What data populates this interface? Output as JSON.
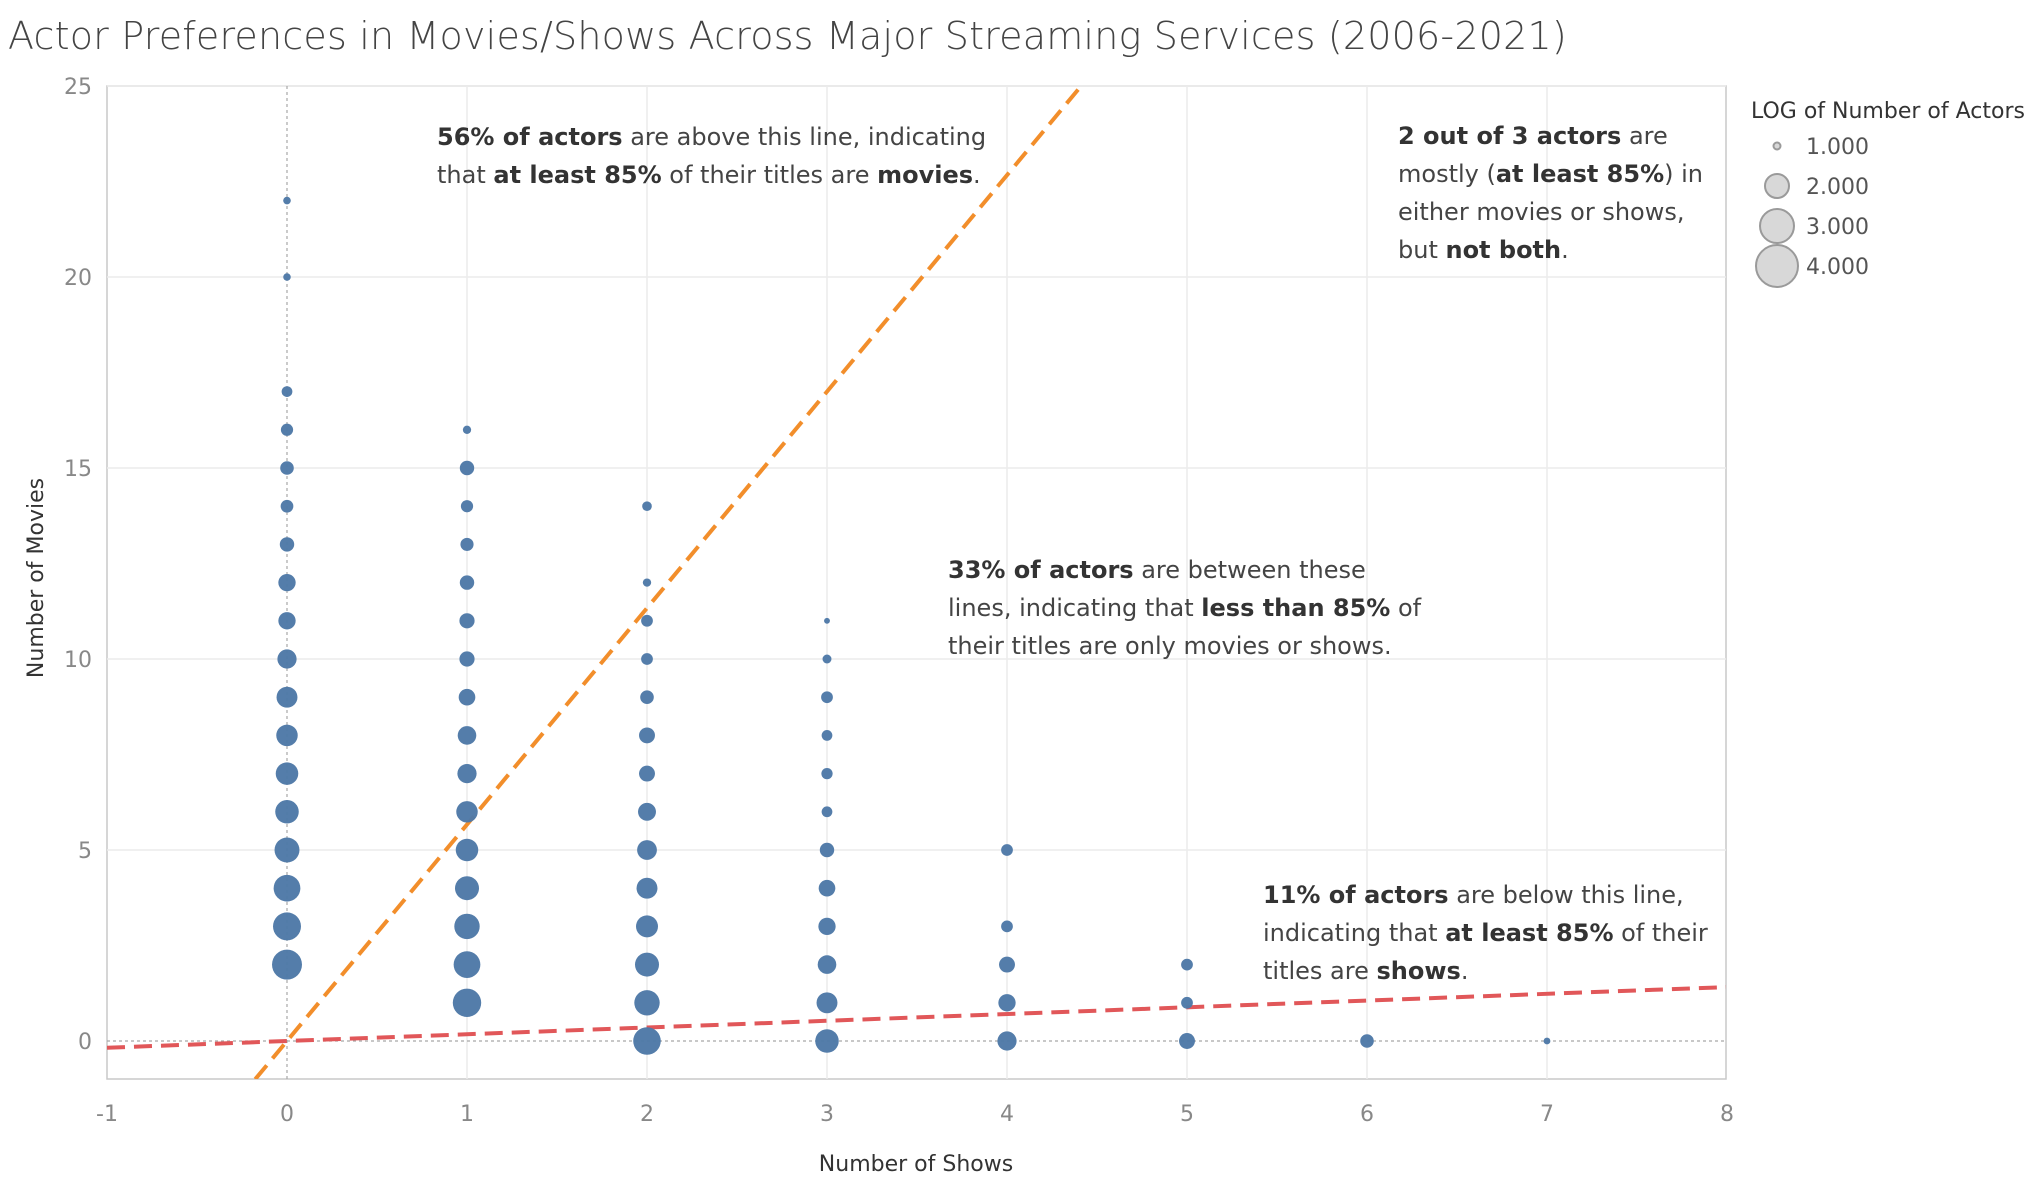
{
  "title": "Actor Preferences in Movies/Shows Across Major Streaming Services (2006-2021)",
  "colors": {
    "points": "#4e79a7",
    "movie_line": "#f28e2b",
    "show_line": "#e15759",
    "grid": "#ececec",
    "legend_circle": "#d8d8d8"
  },
  "chart_data": {
    "type": "scatter",
    "xlabel": "Number of Shows",
    "ylabel": "Number of Movies",
    "xlim": [
      -1,
      8
    ],
    "ylim": [
      -1,
      25
    ],
    "x_ticks": [
      -1,
      0,
      1,
      2,
      3,
      4,
      5,
      6,
      7,
      8
    ],
    "y_ticks": [
      0,
      5,
      10,
      15,
      20,
      25
    ],
    "grid": true,
    "size_encoding": "LOG of Number of Actors",
    "points": [
      {
        "x": 0,
        "y": 22,
        "log_actors": 0.25
      },
      {
        "x": 0,
        "y": 20,
        "log_actors": 0.25
      },
      {
        "x": 0,
        "y": 17,
        "log_actors": 0.5
      },
      {
        "x": 0,
        "y": 16,
        "log_actors": 0.65
      },
      {
        "x": 0,
        "y": 15,
        "log_actors": 0.8
      },
      {
        "x": 0,
        "y": 14,
        "log_actors": 0.7
      },
      {
        "x": 0,
        "y": 13,
        "log_actors": 0.9
      },
      {
        "x": 0,
        "y": 12,
        "log_actors": 1.3
      },
      {
        "x": 0,
        "y": 11,
        "log_actors": 1.3
      },
      {
        "x": 0,
        "y": 10,
        "log_actors": 1.6
      },
      {
        "x": 0,
        "y": 9,
        "log_actors": 1.9
      },
      {
        "x": 0,
        "y": 8,
        "log_actors": 2.0
      },
      {
        "x": 0,
        "y": 7,
        "log_actors": 2.2
      },
      {
        "x": 0,
        "y": 6,
        "log_actors": 2.4
      },
      {
        "x": 0,
        "y": 5,
        "log_actors": 2.7
      },
      {
        "x": 0,
        "y": 4,
        "log_actors": 3.1
      },
      {
        "x": 0,
        "y": 3,
        "log_actors": 3.4
      },
      {
        "x": 0,
        "y": 2,
        "log_actors": 3.9
      },
      {
        "x": 1,
        "y": 16,
        "log_actors": 0.3
      },
      {
        "x": 1,
        "y": 15,
        "log_actors": 0.9
      },
      {
        "x": 1,
        "y": 14,
        "log_actors": 0.65
      },
      {
        "x": 1,
        "y": 13,
        "log_actors": 0.75
      },
      {
        "x": 1,
        "y": 12,
        "log_actors": 0.9
      },
      {
        "x": 1,
        "y": 11,
        "log_actors": 1.0
      },
      {
        "x": 1,
        "y": 10,
        "log_actors": 1.0
      },
      {
        "x": 1,
        "y": 9,
        "log_actors": 1.2
      },
      {
        "x": 1,
        "y": 8,
        "log_actors": 1.5
      },
      {
        "x": 1,
        "y": 7,
        "log_actors": 1.6
      },
      {
        "x": 1,
        "y": 6,
        "log_actors": 2.0
      },
      {
        "x": 1,
        "y": 5,
        "log_actors": 2.2
      },
      {
        "x": 1,
        "y": 4,
        "log_actors": 2.5
      },
      {
        "x": 1,
        "y": 3,
        "log_actors": 2.8
      },
      {
        "x": 1,
        "y": 2,
        "log_actors": 3.1
      },
      {
        "x": 1,
        "y": 1,
        "log_actors": 3.5
      },
      {
        "x": 2,
        "y": 14,
        "log_actors": 0.4
      },
      {
        "x": 2,
        "y": 12,
        "log_actors": 0.3
      },
      {
        "x": 2,
        "y": 11,
        "log_actors": 0.6
      },
      {
        "x": 2,
        "y": 10,
        "log_actors": 0.6
      },
      {
        "x": 2,
        "y": 9,
        "log_actors": 0.8
      },
      {
        "x": 2,
        "y": 8,
        "log_actors": 1.1
      },
      {
        "x": 2,
        "y": 7,
        "log_actors": 1.1
      },
      {
        "x": 2,
        "y": 6,
        "log_actors": 1.4
      },
      {
        "x": 2,
        "y": 5,
        "log_actors": 1.7
      },
      {
        "x": 2,
        "y": 4,
        "log_actors": 1.9
      },
      {
        "x": 2,
        "y": 3,
        "log_actors": 2.1
      },
      {
        "x": 2,
        "y": 2,
        "log_actors": 2.5
      },
      {
        "x": 2,
        "y": 1,
        "log_actors": 2.8
      },
      {
        "x": 2,
        "y": 0,
        "log_actors": 3.3
      },
      {
        "x": 3,
        "y": 11,
        "log_actors": 0.15
      },
      {
        "x": 3,
        "y": 10,
        "log_actors": 0.35
      },
      {
        "x": 3,
        "y": 9,
        "log_actors": 0.6
      },
      {
        "x": 3,
        "y": 8,
        "log_actors": 0.5
      },
      {
        "x": 3,
        "y": 7,
        "log_actors": 0.55
      },
      {
        "x": 3,
        "y": 6,
        "log_actors": 0.5
      },
      {
        "x": 3,
        "y": 5,
        "log_actors": 0.9
      },
      {
        "x": 3,
        "y": 4,
        "log_actors": 1.2
      },
      {
        "x": 3,
        "y": 3,
        "log_actors": 1.3
      },
      {
        "x": 3,
        "y": 2,
        "log_actors": 1.5
      },
      {
        "x": 3,
        "y": 1,
        "log_actors": 1.9
      },
      {
        "x": 3,
        "y": 0,
        "log_actors": 2.4
      },
      {
        "x": 4,
        "y": 5,
        "log_actors": 0.6
      },
      {
        "x": 4,
        "y": 3,
        "log_actors": 0.6
      },
      {
        "x": 4,
        "y": 2,
        "log_actors": 1.1
      },
      {
        "x": 4,
        "y": 1,
        "log_actors": 1.3
      },
      {
        "x": 4,
        "y": 0,
        "log_actors": 1.6
      },
      {
        "x": 5,
        "y": 2,
        "log_actors": 0.6
      },
      {
        "x": 5,
        "y": 1,
        "log_actors": 0.6
      },
      {
        "x": 5,
        "y": 0,
        "log_actors": 1.1
      },
      {
        "x": 6,
        "y": 0,
        "log_actors": 0.8
      },
      {
        "x": 7,
        "y": 0,
        "log_actors": 0.2
      }
    ],
    "reference_lines": [
      {
        "slope": 5.6667
      },
      {
        "slope": 0.17647
      }
    ]
  },
  "annotations": [
    {
      "lines": [
        [
          {
            "t": "56% of actors",
            "b": true
          },
          {
            "t": " are above this line, indicating",
            "b": false
          }
        ],
        [
          {
            "t": "that ",
            "b": false
          },
          {
            "t": "at least 85%",
            "b": true
          },
          {
            "t": " of their titles are ",
            "b": false
          },
          {
            "t": "movies",
            "b": true
          },
          {
            "t": ".",
            "b": false
          }
        ]
      ]
    },
    {
      "lines": [
        [
          {
            "t": "2 out of 3 actors",
            "b": true
          },
          {
            "t": " are",
            "b": false
          }
        ],
        [
          {
            "t": "mostly (",
            "b": false
          },
          {
            "t": "at least 85%",
            "b": true
          },
          {
            "t": ") in",
            "b": false
          }
        ],
        [
          {
            "t": "either movies or shows,",
            "b": false
          }
        ],
        [
          {
            "t": "but ",
            "b": false
          },
          {
            "t": "not both",
            "b": true
          },
          {
            "t": ".",
            "b": false
          }
        ]
      ]
    },
    {
      "lines": [
        [
          {
            "t": "33% of actors",
            "b": true
          },
          {
            "t": " are between these",
            "b": false
          }
        ],
        [
          {
            "t": "lines, indicating that ",
            "b": false
          },
          {
            "t": "less than 85%",
            "b": true
          },
          {
            "t": " of",
            "b": false
          }
        ],
        [
          {
            "t": "their titles are only movies or shows.",
            "b": false
          }
        ]
      ]
    },
    {
      "lines": [
        [
          {
            "t": "11% of actors",
            "b": true
          },
          {
            "t": " are below this line,",
            "b": false
          }
        ],
        [
          {
            "t": "indicating that ",
            "b": false
          },
          {
            "t": "at least 85%",
            "b": true
          },
          {
            "t": " of their",
            "b": false
          }
        ],
        [
          {
            "t": "titles are ",
            "b": false
          },
          {
            "t": "shows",
            "b": true
          },
          {
            "t": ".",
            "b": false
          }
        ]
      ]
    }
  ],
  "legend": {
    "title": "LOG of Number of Actors",
    "items": [
      {
        "label": "1.000",
        "value": 1
      },
      {
        "label": "2.000",
        "value": 2
      },
      {
        "label": "3.000",
        "value": 3
      },
      {
        "label": "4.000",
        "value": 4
      }
    ]
  }
}
